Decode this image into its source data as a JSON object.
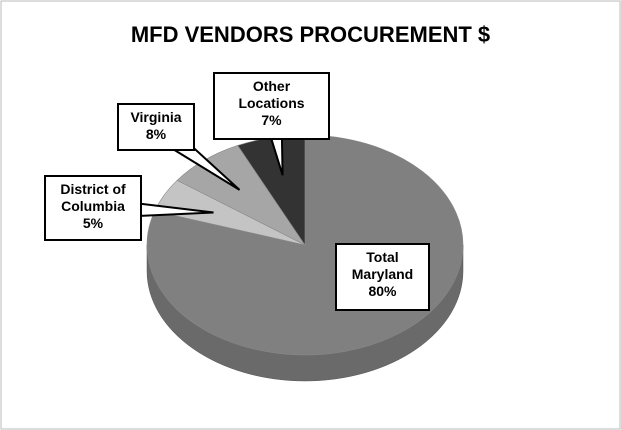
{
  "chart_data": {
    "type": "pie",
    "title": "MFD VENDORS PROCUREMENT $",
    "categories": [
      "Total Maryland",
      "District of Columbia",
      "Virginia",
      "Other Locations"
    ],
    "values": [
      80,
      5,
      8,
      7
    ],
    "value_labels": [
      "80%",
      "5%",
      "8%",
      "7%"
    ],
    "colors": [
      "#808080",
      "#c4c4c4",
      "#a6a6a6",
      "#333333"
    ]
  }
}
